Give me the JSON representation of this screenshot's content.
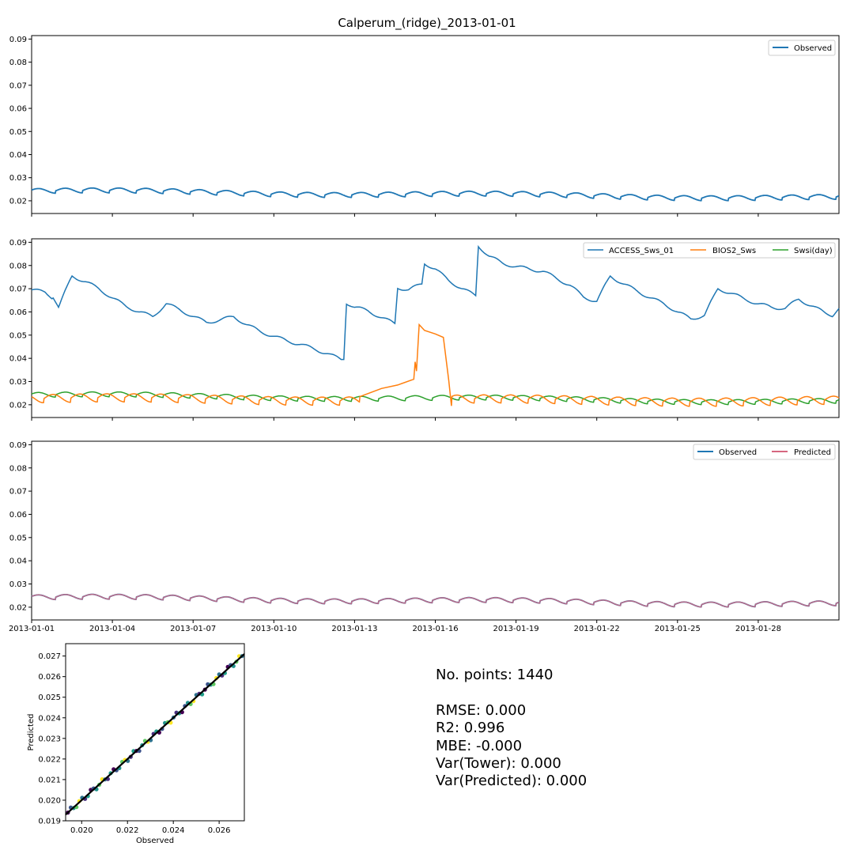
{
  "title": "Calperum_(ridge)_2013-01-01",
  "colors": {
    "observed": "#1f77b4",
    "access": "#1f77b4",
    "bios2": "#ff7f0e",
    "swsi": "#2ca02c",
    "predicted": "#d6677f",
    "fit_line": "#000000"
  },
  "chart_data": [
    {
      "type": "line",
      "panel": "top",
      "ylim": [
        0.0145,
        0.0915
      ],
      "yticks": [
        "0.02",
        "0.03",
        "0.04",
        "0.05",
        "0.06",
        "0.07",
        "0.08",
        "0.09"
      ],
      "ytick_values": [
        0.02,
        0.03,
        0.04,
        0.05,
        0.06,
        0.07,
        0.08,
        0.09
      ],
      "xlim": [
        0,
        30
      ],
      "legend": {
        "placement": "top-right",
        "entries": [
          "Observed"
        ]
      },
      "series": [
        {
          "name": "Observed",
          "x_start": 0,
          "x_end": 30,
          "mean_start": 0.0242,
          "mean_end": 0.0212,
          "amplitude": 0.0021,
          "period_days": 1
        }
      ]
    },
    {
      "type": "line",
      "panel": "middle",
      "ylim": [
        0.0145,
        0.0915
      ],
      "yticks": [
        "0.02",
        "0.03",
        "0.04",
        "0.05",
        "0.06",
        "0.07",
        "0.08",
        "0.09"
      ],
      "ytick_values": [
        0.02,
        0.03,
        0.04,
        0.05,
        0.06,
        0.07,
        0.08,
        0.09
      ],
      "xlim": [
        0,
        30
      ],
      "legend": {
        "placement": "top-right",
        "entries": [
          "ACCESS_Sws_01",
          "BIOS2_Sws",
          "Swsi(day)"
        ]
      },
      "series": [
        {
          "name": "ACCESS_Sws_01",
          "x": [
            0,
            0.5,
            0.8,
            1.0,
            1.5,
            2.0,
            2.5,
            3.0,
            3.5,
            4.0,
            4.5,
            5.0,
            5.5,
            6.0,
            6.5,
            7.0,
            7.5,
            8.0,
            8.5,
            9.0,
            9.5,
            10.0,
            10.5,
            11.0,
            11.5,
            11.6,
            11.7,
            12.0,
            12.5,
            13.0,
            13.5,
            13.6,
            14.0,
            14.5,
            14.6,
            15.0,
            15.5,
            16.0,
            16.5,
            16.6,
            17.0,
            17.5,
            18.0,
            18.5,
            19.0,
            19.5,
            20.0,
            20.5,
            21.0,
            21.5,
            22.0,
            22.5,
            23.0,
            23.5,
            24.0,
            24.5,
            25.0,
            25.5,
            26.0,
            26.5,
            27.0,
            27.5,
            28.0,
            28.5,
            29.0,
            29.5,
            29.8,
            30.0
          ],
          "y": [
            0.0695,
            0.0685,
            0.066,
            0.062,
            0.0755,
            0.073,
            0.07,
            0.066,
            0.0625,
            0.06,
            0.058,
            0.0635,
            0.061,
            0.058,
            0.0555,
            0.0565,
            0.058,
            0.0545,
            0.0515,
            0.0495,
            0.0475,
            0.046,
            0.044,
            0.042,
            0.0395,
            0.0395,
            0.064,
            0.062,
            0.0605,
            0.0575,
            0.055,
            0.0705,
            0.0695,
            0.072,
            0.081,
            0.0785,
            0.0735,
            0.07,
            0.067,
            0.0885,
            0.084,
            0.081,
            0.0795,
            0.0785,
            0.0775,
            0.0745,
            0.0715,
            0.0665,
            0.0645,
            0.0755,
            0.072,
            0.069,
            0.066,
            0.0635,
            0.06,
            0.057,
            0.0585,
            0.07,
            0.068,
            0.0655,
            0.0635,
            0.062,
            0.0615,
            0.0655,
            0.0625,
            0.0595,
            0.0585,
            0.0615
          ]
        },
        {
          "name": "BIOS2_Sws",
          "x_start": 0,
          "x_end": 30,
          "mean_start": 0.0225,
          "mean_end": 0.0215,
          "amplitude": 0.0035,
          "period_days": 1,
          "anomaly": {
            "x": [
              12.2,
              13.0,
              13.6,
              14.2,
              14.25,
              14.3,
              14.4,
              14.6,
              15.0,
              15.3,
              15.5,
              15.6
            ],
            "y": [
              0.0235,
              0.027,
              0.0285,
              0.031,
              0.0385,
              0.0345,
              0.0545,
              0.052,
              0.0505,
              0.049,
              0.0305,
              0.0195
            ]
          }
        },
        {
          "name": "Swsi(day)",
          "x_start": 0,
          "x_end": 30,
          "mean_start": 0.0242,
          "mean_end": 0.0212,
          "amplitude": 0.0021,
          "period_days": 1
        }
      ]
    },
    {
      "type": "line",
      "panel": "bottom",
      "ylim": [
        0.0145,
        0.0915
      ],
      "yticks": [
        "0.02",
        "0.03",
        "0.04",
        "0.05",
        "0.06",
        "0.07",
        "0.08",
        "0.09"
      ],
      "ytick_values": [
        0.02,
        0.03,
        0.04,
        0.05,
        0.06,
        0.07,
        0.08,
        0.09
      ],
      "xlim": [
        0,
        30
      ],
      "xticks": [
        "2013-01-01",
        "2013-01-04",
        "2013-01-07",
        "2013-01-10",
        "2013-01-13",
        "2013-01-16",
        "2013-01-19",
        "2013-01-22",
        "2013-01-25",
        "2013-01-28"
      ],
      "xtick_values": [
        0,
        3,
        6,
        9,
        12,
        15,
        18,
        21,
        24,
        27
      ],
      "legend": {
        "placement": "top-right",
        "entries": [
          "Observed",
          "Predicted"
        ]
      },
      "series": [
        {
          "name": "Observed",
          "x_start": 0,
          "x_end": 30,
          "mean_start": 0.0242,
          "mean_end": 0.0212,
          "amplitude": 0.0021,
          "period_days": 1
        },
        {
          "name": "Predicted",
          "x_start": 0,
          "x_end": 30,
          "mean_start": 0.0242,
          "mean_end": 0.0212,
          "amplitude": 0.0021,
          "period_days": 1
        }
      ]
    },
    {
      "type": "scatter",
      "panel": "scatter",
      "xlabel": "Observed",
      "ylabel": "Predicted",
      "xlim": [
        0.0193,
        0.0271
      ],
      "ylim": [
        0.019,
        0.0276
      ],
      "xticks": [
        "0.020",
        "0.022",
        "0.024",
        "0.026"
      ],
      "xtick_values": [
        0.02,
        0.022,
        0.024,
        0.026
      ],
      "yticks": [
        "0.019",
        "0.020",
        "0.021",
        "0.022",
        "0.023",
        "0.024",
        "0.025",
        "0.026",
        "0.027"
      ],
      "ytick_values": [
        0.019,
        0.02,
        0.021,
        0.022,
        0.023,
        0.024,
        0.025,
        0.026,
        0.027
      ],
      "points": {
        "x_start": 0.0194,
        "x_end": 0.027,
        "count": 62
      },
      "fit_line": {
        "x": [
          0.0193,
          0.0271
        ],
        "y": [
          0.0193,
          0.0271
        ]
      }
    }
  ],
  "stats": {
    "points": "No. points: 1440",
    "rmse": "RMSE: 0.000",
    "r2": "R2: 0.996",
    "mbe": "MBE: -0.000",
    "var_tower": "Var(Tower): 0.000",
    "var_predicted": "Var(Predicted): 0.000"
  }
}
